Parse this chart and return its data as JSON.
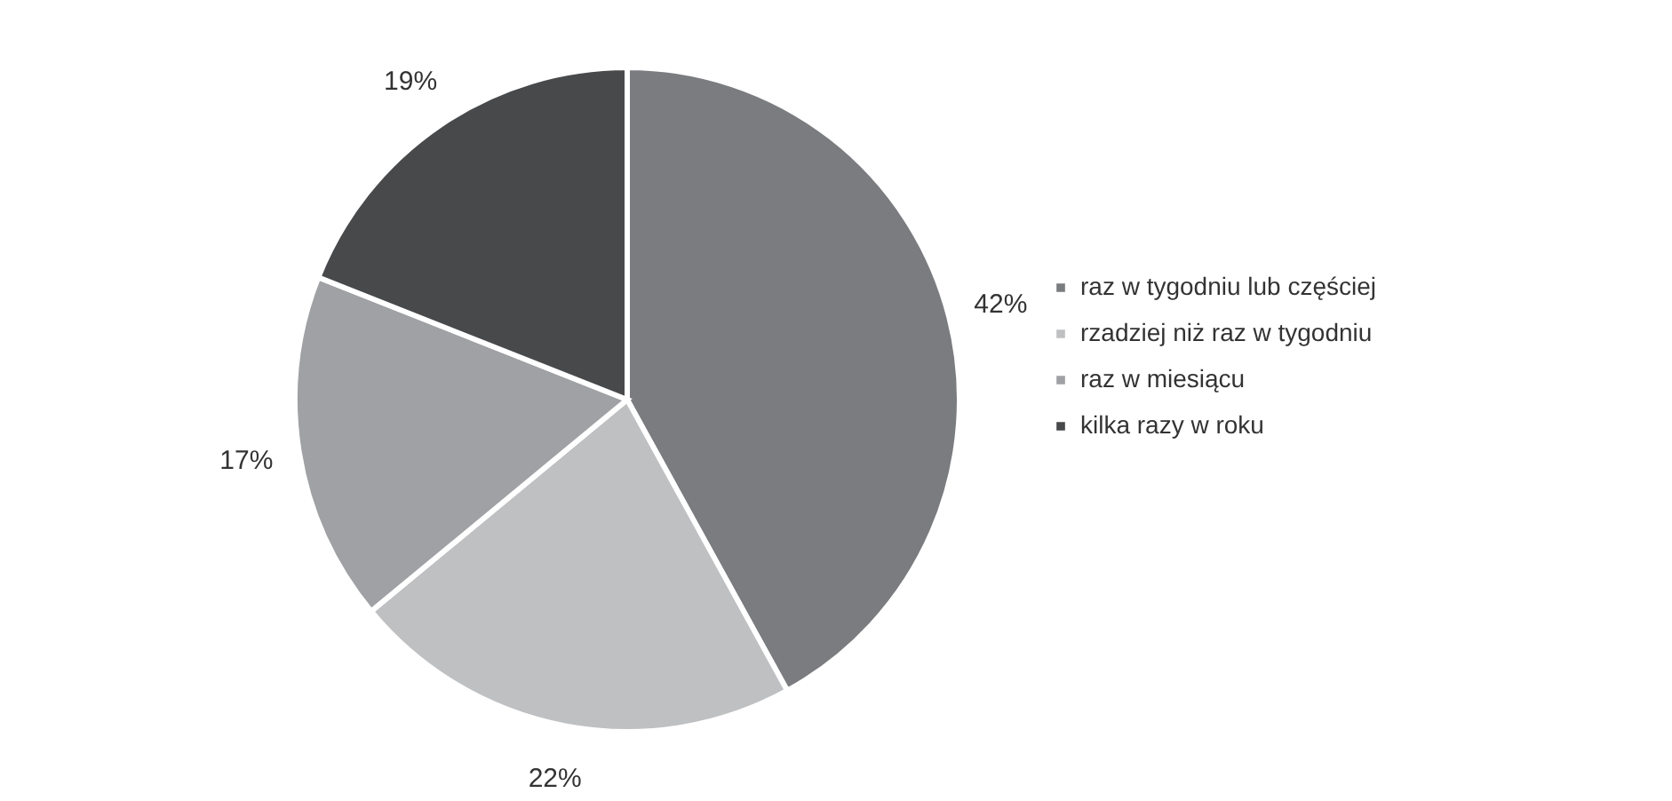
{
  "chart_data": {
    "type": "pie",
    "categories": [
      "raz w tygodniu lub częściej",
      "rzadziej niż raz w tygodniu",
      "raz w miesiącu",
      "kilka razy w roku"
    ],
    "values": [
      42,
      22,
      17,
      19
    ],
    "colors": [
      "#7b7c7f",
      "#bfc0c2",
      "#a0a1a4",
      "#48494b"
    ],
    "value_labels": [
      "42%",
      "22%",
      "17%",
      "19%"
    ],
    "legend": "right"
  }
}
